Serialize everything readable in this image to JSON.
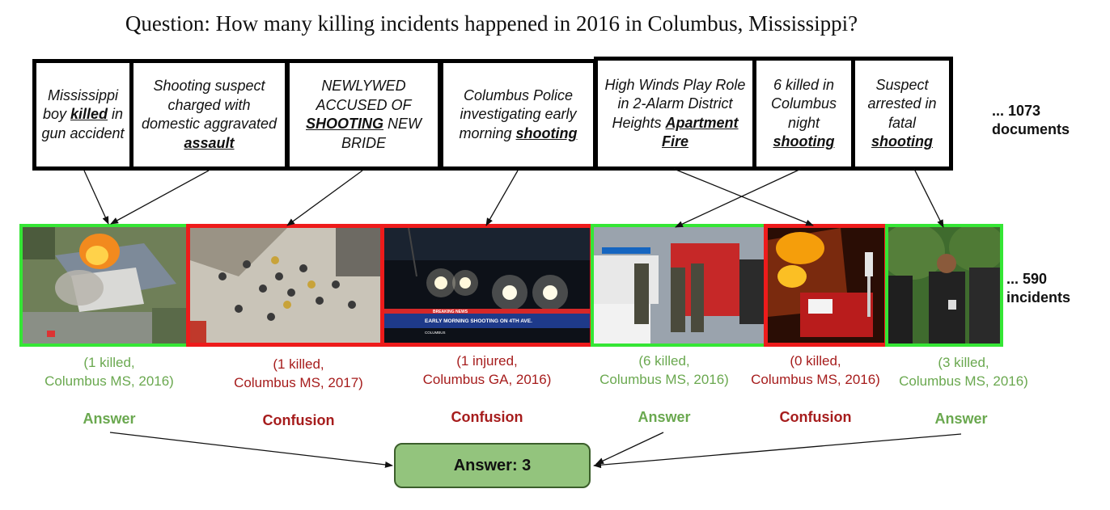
{
  "question": "Question: How many killing incidents happened in 2016 in Columbus, Mississippi?",
  "documents": [
    {
      "before": "Mississippi boy ",
      "keyword": "killed",
      "after": " in gun accident"
    },
    {
      "before": "Shooting suspect charged with domestic aggravated ",
      "keyword": "assault",
      "after": ""
    },
    {
      "before": "NEWLYWED ACCUSED OF ",
      "keyword": "SHOOTING",
      "after": " NEW BRIDE"
    },
    {
      "before": "Columbus Police investigating early morning ",
      "keyword": "shooting",
      "after": ""
    },
    {
      "before": "High Winds Play Role in 2-Alarm District Heights ",
      "keyword": "Apartment Fire",
      "after": ""
    },
    {
      "before": "6 killed in Columbus night ",
      "keyword": "shooting",
      "after": ""
    },
    {
      "before": "Suspect arrested in fatal ",
      "keyword": "shooting",
      "after": ""
    }
  ],
  "documents_count_label": "... 1073 documents",
  "incidents_count_label": "... 590 incidents",
  "incidents": [
    {
      "label": "(1 killed,\nColumbus MS, 2016)",
      "status": "Answer",
      "outcome": "answer",
      "image": "house-fire-aerial"
    },
    {
      "label": "(1 killed,\nColumbus MS, 2017)",
      "status": "Confusion",
      "outcome": "confusion",
      "image": "crime-scene-aerial"
    },
    {
      "label": "(1 injured,\nColumbus GA, 2016)",
      "status": "Confusion",
      "outcome": "confusion",
      "image": "night-news-broadcast",
      "broadcast": {
        "top": "BREAKING NEWS",
        "headline": "EARLY MORNING SHOOTING ON 4TH AVE.",
        "location": "COLUMBUS"
      }
    },
    {
      "label": "(6 killed,\nColumbus MS, 2016)",
      "status": "Answer",
      "outcome": "answer",
      "image": "police-emergency-scene"
    },
    {
      "label": "(0 killed,\nColumbus MS, 2016)",
      "status": "Confusion",
      "outcome": "confusion",
      "image": "building-fire-engine"
    },
    {
      "label": "(3 killed,\nColumbus MS, 2016)",
      "status": "Answer",
      "outcome": "answer",
      "image": "police-officers"
    }
  ],
  "answer_label": "Answer: 3",
  "colors": {
    "answer": "#6aa84f",
    "confusion": "#a61c1c",
    "answer_border": "#35e635",
    "confusion_border": "#ee1b1b",
    "answer_box": "#93c47d"
  }
}
